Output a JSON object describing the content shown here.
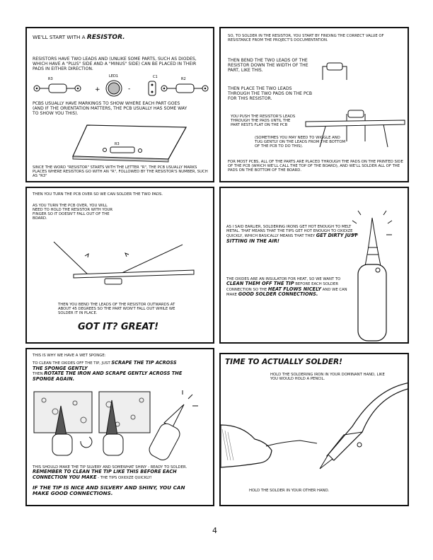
{
  "page_number": "4",
  "p1": {
    "intro_a": "We'll start with a",
    "intro_b": "resistor.",
    "leads": "Resistors have two leads and (unlike some parts, such as diodes, which have a \"plus\" side and a \"minus\" side) can be placed in their pads in either direction.",
    "labels": {
      "r3": "R3",
      "led1": "LED1",
      "c1": "C1",
      "r2": "R2",
      "plus": "+",
      "minus": "-",
      "pcb_r3": "R3"
    },
    "markings": "PCBs usually have markings to show where each part goes (and if the orientation matters, the PCB usually has some way to show you this).",
    "since": "Since the word \"resistor\" starts with the letter \"R\", the PCB usually marks places where resistors go with an \"R\", followed by the resistor's number, such as \"R3\""
  },
  "p2": {
    "solder_in": "So, to solder in the resistor, you start by finding the correct value of resistance from the project's documentation.",
    "bend": "Then bend the two leads of the resistor down the width of the part, like this.",
    "place": "Then place the two leads through the two pads on the PCB for this resistor.",
    "push": "You push the resistor's leads through the pads until the part rests flat on the PCB",
    "wiggle": "(Sometimes you may need to wiggle and tug gently on the leads from the bottom of the PCB to do this).",
    "most": "For most PCBs, all of the parts are placed through the pads on the printed side of the PCB (which we'll call the top of the board), and we'll solder all of the pads on the bottom of the board."
  },
  "p3": {
    "turn": "Then you turn the PCB over so we can solder the two pads.",
    "hold": "As you turn the PCB over, you will need to hold the resistor with your finger so it doesn't fall out of the board.",
    "bend_out": "Then you bend the leads of the resistor outwards at about 45 degrees so the part won't fall out while we solder it in place.",
    "got_it": "Got it?   Great!"
  },
  "p4": {
    "hot": "As I said earlier, soldering irons get hot enough to melt metal. That means that the tips get hot enough to oxidize quickly, which basically means that they",
    "hot_em": "get dirty just sitting in the air!",
    "oxides_a": "The oxides are an insulator for heat, so we want to",
    "oxides_em1": "clean them off the tip",
    "oxides_b": "before each solder connection so the",
    "oxides_em2": "heat flows nicely",
    "oxides_c": "and we can make",
    "oxides_em3": "good solder connections."
  },
  "p5": {
    "wet": "This is why we have a wet sponge:",
    "clean_a": "To clean the oxides off the tip, just",
    "clean_em1": "scrape the tip across the sponge gently",
    "clean_b": "Then",
    "clean_em2": "rotate the iron and scrape gently across the sponge again.",
    "shiny_a": "This should make the tip silvery and somewhat shiny - ready to solder.",
    "shiny_em": "Remember to clean the tip like this before each connection you make",
    "shiny_b": "- the tips oxidize quickly!",
    "final": "If the tip is nice and silvery and shiny, you can make good connections."
  },
  "p6": {
    "title": "Time to actually solder!",
    "hold_iron": "Hold the soldering iron in your dominant hand, like you would hold a pencil.",
    "hold_solder": "Hold the solder in your other hand."
  }
}
